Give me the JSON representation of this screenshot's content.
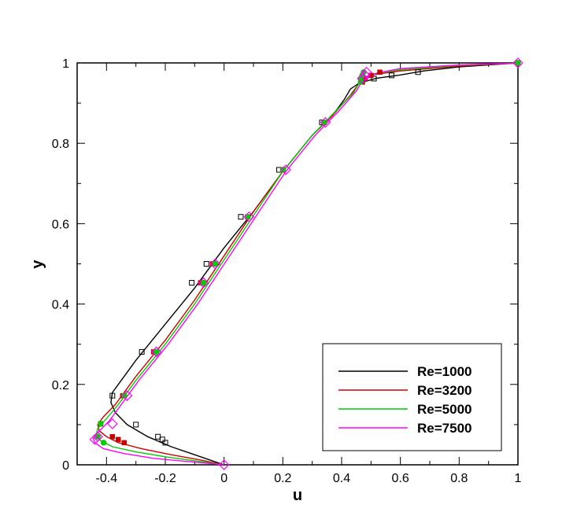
{
  "chart_data": {
    "type": "line",
    "title": "",
    "xlabel": "u",
    "ylabel": "y",
    "xlim": [
      -0.5,
      1.0
    ],
    "ylim": [
      0,
      1.0
    ],
    "x_ticks": [
      -0.4,
      -0.2,
      0,
      0.2,
      0.4,
      0.6,
      0.8,
      1
    ],
    "x_tick_labels": [
      "-0.4",
      "-0.2",
      "0",
      "0.2",
      "0.4",
      "0.6",
      "0.8",
      "1"
    ],
    "y_ticks": [
      0,
      0.2,
      0.4,
      0.6,
      0.8,
      1
    ],
    "y_tick_labels": [
      "0",
      "0.2",
      "0.4",
      "0.6",
      "0.8",
      "1"
    ],
    "grid": false,
    "legend_position": "bottom-right",
    "series": [
      {
        "name": "Re=1000",
        "color": "#000000",
        "line": [
          [
            0,
            0
          ],
          [
            -0.04,
            0.01
          ],
          [
            -0.1,
            0.025
          ],
          [
            -0.18,
            0.045
          ],
          [
            -0.26,
            0.07
          ],
          [
            -0.33,
            0.1
          ],
          [
            -0.37,
            0.13
          ],
          [
            -0.385,
            0.155
          ],
          [
            -0.38,
            0.18
          ],
          [
            -0.36,
            0.2
          ],
          [
            -0.3,
            0.26
          ],
          [
            -0.2,
            0.35
          ],
          [
            -0.1,
            0.44
          ],
          [
            0.0,
            0.54
          ],
          [
            0.1,
            0.63
          ],
          [
            0.2,
            0.73
          ],
          [
            0.3,
            0.82
          ],
          [
            0.37,
            0.87
          ],
          [
            0.41,
            0.91
          ],
          [
            0.43,
            0.935
          ],
          [
            0.46,
            0.95
          ],
          [
            0.52,
            0.962
          ],
          [
            0.6,
            0.97
          ],
          [
            0.68,
            0.98
          ],
          [
            0.8,
            0.99
          ],
          [
            1.0,
            1.0
          ]
        ],
        "marker": "open-square",
        "markers": [
          [
            -0.38,
            0.172
          ],
          [
            -0.3,
            0.1
          ],
          [
            -0.225,
            0.07
          ],
          [
            -0.21,
            0.063
          ],
          [
            -0.2,
            0.055
          ],
          [
            -0.28,
            0.281
          ],
          [
            -0.11,
            0.453
          ],
          [
            -0.06,
            0.5
          ],
          [
            0.057,
            0.617
          ],
          [
            0.187,
            0.734
          ],
          [
            0.333,
            0.852
          ],
          [
            0.47,
            0.953
          ],
          [
            0.51,
            0.961
          ],
          [
            0.57,
            0.969
          ],
          [
            0.66,
            0.977
          ],
          [
            1.0,
            1.0
          ]
        ]
      },
      {
        "name": "Re=3200",
        "color": "#cc0000",
        "line": [
          [
            0,
            0
          ],
          [
            -0.08,
            0.012
          ],
          [
            -0.18,
            0.025
          ],
          [
            -0.28,
            0.04
          ],
          [
            -0.36,
            0.055
          ],
          [
            -0.4,
            0.07
          ],
          [
            -0.425,
            0.085
          ],
          [
            -0.43,
            0.1
          ],
          [
            -0.41,
            0.12
          ],
          [
            -0.37,
            0.15
          ],
          [
            -0.3,
            0.22
          ],
          [
            -0.2,
            0.31
          ],
          [
            -0.1,
            0.41
          ],
          [
            0.0,
            0.52
          ],
          [
            0.1,
            0.63
          ],
          [
            0.2,
            0.73
          ],
          [
            0.3,
            0.82
          ],
          [
            0.37,
            0.87
          ],
          [
            0.43,
            0.92
          ],
          [
            0.46,
            0.95
          ],
          [
            0.5,
            0.97
          ],
          [
            0.6,
            0.98
          ],
          [
            0.8,
            0.992
          ],
          [
            1.0,
            1.0
          ]
        ],
        "marker": "filled-square",
        "markers": [
          [
            -0.42,
            0.102
          ],
          [
            -0.38,
            0.07
          ],
          [
            -0.36,
            0.063
          ],
          [
            -0.34,
            0.055
          ],
          [
            -0.345,
            0.172
          ],
          [
            -0.24,
            0.281
          ],
          [
            -0.08,
            0.453
          ],
          [
            -0.04,
            0.5
          ],
          [
            0.08,
            0.617
          ],
          [
            0.2,
            0.734
          ],
          [
            0.34,
            0.852
          ],
          [
            0.47,
            0.953
          ],
          [
            0.48,
            0.961
          ],
          [
            0.5,
            0.969
          ],
          [
            0.53,
            0.977
          ],
          [
            1.0,
            1.0
          ]
        ]
      },
      {
        "name": "Re=5000",
        "color": "#00cc00",
        "line": [
          [
            0,
            0
          ],
          [
            -0.1,
            0.01
          ],
          [
            -0.2,
            0.02
          ],
          [
            -0.3,
            0.032
          ],
          [
            -0.38,
            0.045
          ],
          [
            -0.42,
            0.06
          ],
          [
            -0.435,
            0.075
          ],
          [
            -0.43,
            0.09
          ],
          [
            -0.4,
            0.115
          ],
          [
            -0.36,
            0.15
          ],
          [
            -0.3,
            0.21
          ],
          [
            -0.2,
            0.3
          ],
          [
            -0.1,
            0.4
          ],
          [
            0.0,
            0.51
          ],
          [
            0.1,
            0.62
          ],
          [
            0.2,
            0.73
          ],
          [
            0.3,
            0.82
          ],
          [
            0.38,
            0.88
          ],
          [
            0.44,
            0.925
          ],
          [
            0.46,
            0.95
          ],
          [
            0.5,
            0.972
          ],
          [
            0.6,
            0.983
          ],
          [
            0.8,
            0.994
          ],
          [
            1.0,
            1.0
          ]
        ],
        "marker": "filled-circle",
        "markers": [
          [
            -0.43,
            0.07
          ],
          [
            -0.41,
            0.055
          ],
          [
            -0.42,
            0.102
          ],
          [
            -0.34,
            0.172
          ],
          [
            -0.23,
            0.281
          ],
          [
            -0.07,
            0.453
          ],
          [
            -0.03,
            0.5
          ],
          [
            0.08,
            0.617
          ],
          [
            0.2,
            0.734
          ],
          [
            0.34,
            0.852
          ],
          [
            0.465,
            0.953
          ],
          [
            0.465,
            0.961
          ],
          [
            0.47,
            0.969
          ],
          [
            0.475,
            0.977
          ],
          [
            1.0,
            1.0
          ]
        ]
      },
      {
        "name": "Re=7500",
        "color": "#ff00ff",
        "line": [
          [
            0,
            0
          ],
          [
            -0.12,
            0.008
          ],
          [
            -0.24,
            0.016
          ],
          [
            -0.34,
            0.028
          ],
          [
            -0.41,
            0.04
          ],
          [
            -0.44,
            0.055
          ],
          [
            -0.445,
            0.065
          ],
          [
            -0.43,
            0.08
          ],
          [
            -0.39,
            0.11
          ],
          [
            -0.35,
            0.15
          ],
          [
            -0.29,
            0.21
          ],
          [
            -0.19,
            0.3
          ],
          [
            -0.09,
            0.4
          ],
          [
            0.01,
            0.51
          ],
          [
            0.11,
            0.62
          ],
          [
            0.21,
            0.73
          ],
          [
            0.31,
            0.82
          ],
          [
            0.39,
            0.88
          ],
          [
            0.45,
            0.93
          ],
          [
            0.47,
            0.955
          ],
          [
            0.52,
            0.975
          ],
          [
            0.6,
            0.986
          ],
          [
            0.8,
            0.995
          ],
          [
            1.0,
            1.0
          ]
        ],
        "marker": "open-diamond",
        "markers": [
          [
            -0.44,
            0.063
          ],
          [
            -0.43,
            0.07
          ],
          [
            -0.38,
            0.102
          ],
          [
            -0.33,
            0.172
          ],
          [
            -0.23,
            0.281
          ],
          [
            -0.07,
            0.453
          ],
          [
            -0.03,
            0.5
          ],
          [
            0.085,
            0.617
          ],
          [
            0.21,
            0.734
          ],
          [
            0.345,
            0.852
          ],
          [
            0.47,
            0.961
          ],
          [
            0.48,
            0.969
          ],
          [
            0.485,
            0.977
          ],
          [
            1.0,
            1.0
          ],
          [
            0.0,
            0.0
          ]
        ]
      }
    ]
  }
}
